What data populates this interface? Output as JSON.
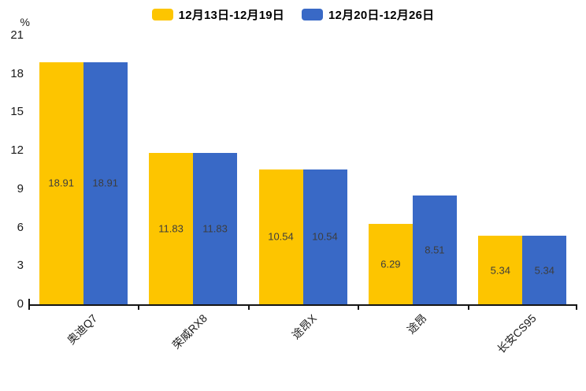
{
  "legend": {
    "items": [
      {
        "label": "12月13日-12月19日",
        "color": "#FDC500"
      },
      {
        "label": "12月20日-12月26日",
        "color": "#3969C6"
      }
    ]
  },
  "y_axis": {
    "unit": "%",
    "ticks": [
      0,
      3,
      6,
      9,
      12,
      15,
      18,
      21
    ],
    "max": 21
  },
  "chart_data": {
    "type": "bar",
    "title": "",
    "categories": [
      "奥迪Q7",
      "荣威RX8",
      "途昂X",
      "途昂",
      "长安CS95"
    ],
    "series": [
      {
        "name": "12月13日-12月19日",
        "color": "#FDC500",
        "values": [
          18.91,
          11.83,
          10.54,
          6.29,
          5.34
        ]
      },
      {
        "name": "12月20日-12月26日",
        "color": "#3969C6",
        "values": [
          18.91,
          11.83,
          10.54,
          8.51,
          5.34
        ]
      }
    ],
    "value_labels": [
      "18.91",
      "11.83",
      "10.54",
      "6.29",
      "8.51",
      "5.34"
    ],
    "xlabel": "",
    "ylabel": "%",
    "ylim": [
      0,
      21
    ],
    "grid": false,
    "legend_position": "top"
  },
  "colors": {
    "axis": "#151515",
    "tick_label": "#1a1a1a",
    "value_label": "#3d3d3d",
    "background": "#ffffff"
  }
}
